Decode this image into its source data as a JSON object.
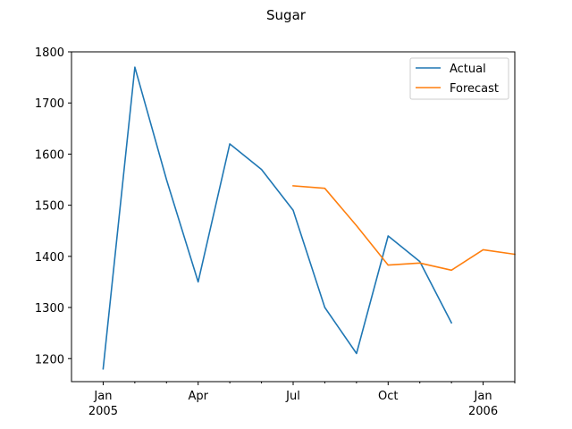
{
  "chart_data": {
    "type": "line",
    "title": "Sugar",
    "xlabel": "",
    "ylabel": "",
    "ylim": [
      1155,
      1800
    ],
    "yticks": [
      1200,
      1300,
      1400,
      1500,
      1600,
      1700,
      1800
    ],
    "xlim": [
      "2004-12",
      "2006-02"
    ],
    "x_major_ticks": [
      {
        "date": "2005-01",
        "label": "Jan",
        "sublabel": "2005"
      },
      {
        "date": "2005-04",
        "label": "Apr",
        "sublabel": ""
      },
      {
        "date": "2005-07",
        "label": "Jul",
        "sublabel": ""
      },
      {
        "date": "2005-10",
        "label": "Oct",
        "sublabel": ""
      },
      {
        "date": "2006-01",
        "label": "Jan",
        "sublabel": "2006"
      }
    ],
    "x_minor_ticks": [
      "2005-02",
      "2005-03",
      "2005-05",
      "2005-06",
      "2005-08",
      "2005-09",
      "2005-11",
      "2005-12",
      "2006-02"
    ],
    "grid": false,
    "legend_position": "top-right",
    "series": [
      {
        "name": "Actual",
        "color": "#1f77b4",
        "x": [
          "2005-01",
          "2005-02",
          "2005-03",
          "2005-04",
          "2005-05",
          "2005-06",
          "2005-07",
          "2005-08",
          "2005-09",
          "2005-10",
          "2005-11",
          "2005-12"
        ],
        "values": [
          1180,
          1770,
          1550,
          1350,
          1620,
          1570,
          1490,
          1300,
          1210,
          1440,
          1390,
          1270
        ]
      },
      {
        "name": "Forecast",
        "color": "#ff7f0e",
        "x": [
          "2005-07",
          "2005-08",
          "2005-09",
          "2005-10",
          "2005-11",
          "2005-12",
          "2006-01",
          "2006-02"
        ],
        "values": [
          1538,
          1533,
          1460,
          1383,
          1387,
          1373,
          1413,
          1404
        ]
      }
    ]
  }
}
